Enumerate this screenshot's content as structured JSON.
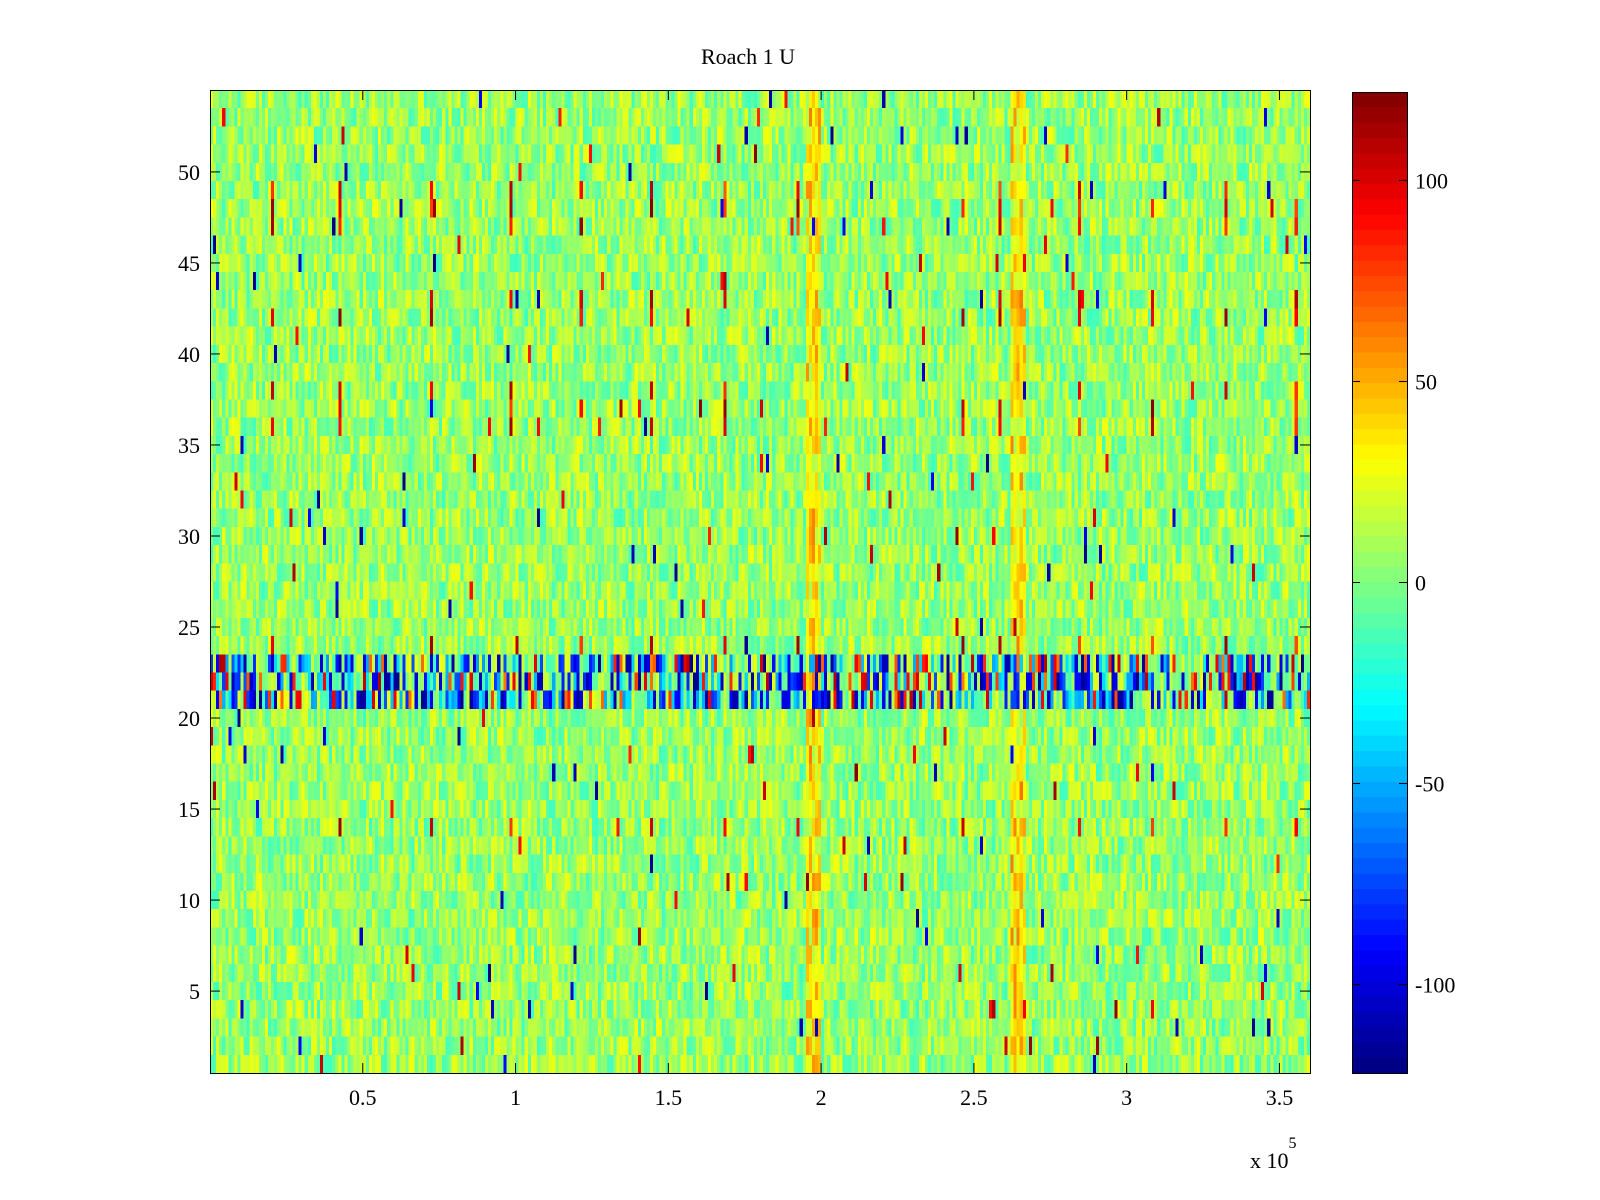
{
  "chart_data": {
    "type": "heatmap",
    "title": "Roach 1 U",
    "xlabel": "",
    "ylabel": "",
    "x_exponent_label": {
      "base": "x 10",
      "exponent": "5"
    },
    "xlim": [
      0,
      360000
    ],
    "ylim": [
      0.5,
      54.5
    ],
    "x_ticks": [
      {
        "value": 50000,
        "label": "0.5"
      },
      {
        "value": 100000,
        "label": "1"
      },
      {
        "value": 150000,
        "label": "1.5"
      },
      {
        "value": 200000,
        "label": "2"
      },
      {
        "value": 250000,
        "label": "2.5"
      },
      {
        "value": 300000,
        "label": "3"
      },
      {
        "value": 350000,
        "label": "3.5"
      }
    ],
    "y_ticks": [
      {
        "value": 5,
        "label": "5"
      },
      {
        "value": 10,
        "label": "10"
      },
      {
        "value": 15,
        "label": "15"
      },
      {
        "value": 20,
        "label": "20"
      },
      {
        "value": 25,
        "label": "25"
      },
      {
        "value": 30,
        "label": "30"
      },
      {
        "value": 35,
        "label": "35"
      },
      {
        "value": 40,
        "label": "40"
      },
      {
        "value": 45,
        "label": "45"
      },
      {
        "value": 50,
        "label": "50"
      }
    ],
    "rows": 54,
    "columns": 360,
    "colormap": "jet",
    "clim": [
      -122,
      122
    ],
    "colorbar": {
      "location": "right",
      "ticks": [
        {
          "value": 100,
          "label": "100"
        },
        {
          "value": 50,
          "label": "50"
        },
        {
          "value": 0,
          "label": "0"
        },
        {
          "value": -50,
          "label": "-50"
        },
        {
          "value": -100,
          "label": "-100"
        }
      ]
    },
    "features": {
      "background_noise_amplitude": 22,
      "warm_columns_x": [
        197000,
        264000
      ],
      "strong_row_band_y": [
        21,
        23
      ],
      "spike_columns_x": [
        20000,
        42000,
        72000,
        98000,
        121000,
        144000,
        168000,
        192000,
        246000,
        258000,
        284000,
        308000,
        332000,
        355000
      ],
      "spike_rows_y": [
        14,
        24,
        36,
        37,
        38,
        42,
        43,
        47,
        48,
        49
      ]
    },
    "grid": false
  }
}
